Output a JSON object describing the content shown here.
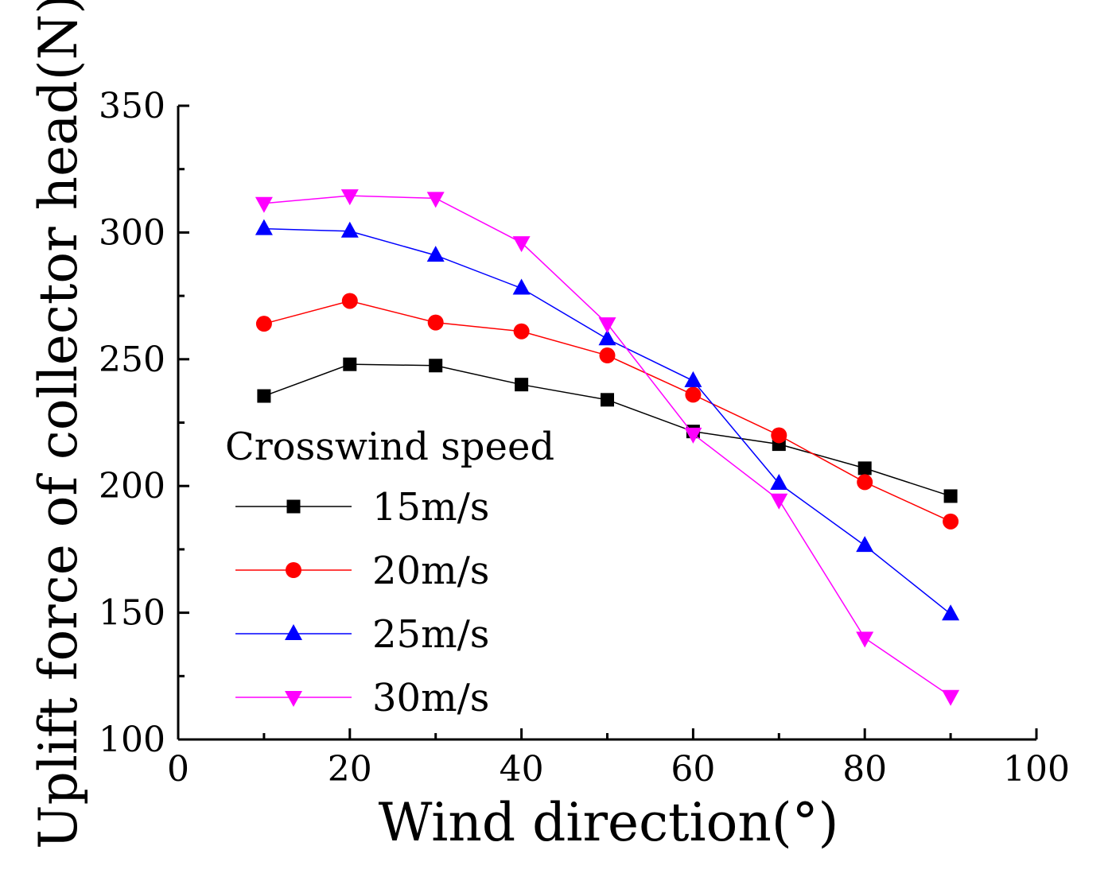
{
  "chart_data": {
    "type": "line",
    "title": "",
    "xlabel": "Wind direction(°)",
    "ylabel": "Uplift force of collector head(N)",
    "xlim": [
      0,
      100
    ],
    "ylim": [
      100,
      350
    ],
    "xticks": [
      0,
      20,
      40,
      60,
      80,
      100
    ],
    "yticks": [
      100,
      150,
      200,
      250,
      300,
      350
    ],
    "grid": false,
    "legend": {
      "title": "Crosswind speed",
      "placement": "center-left"
    },
    "x": [
      10,
      20,
      30,
      40,
      50,
      60,
      70,
      80,
      90
    ],
    "series": [
      {
        "name": "15m/s",
        "color": "#000000",
        "marker": "square",
        "values": [
          235.5,
          248,
          247.5,
          240,
          234,
          221.5,
          216.5,
          207,
          196
        ]
      },
      {
        "name": "20m/s",
        "color": "#ff0000",
        "marker": "circle",
        "values": [
          264,
          273,
          264.5,
          261,
          251.5,
          236,
          220,
          201.5,
          186
        ]
      },
      {
        "name": "25m/s",
        "color": "#0000ff",
        "marker": "triangle-up",
        "values": [
          301.5,
          300.5,
          291,
          278,
          258,
          241.5,
          201,
          176.5,
          149.5
        ]
      },
      {
        "name": "30m/s",
        "color": "#ff00ff",
        "marker": "triangle-down",
        "values": [
          311.5,
          314.5,
          313.5,
          296,
          264,
          220.5,
          194.5,
          140,
          117
        ]
      }
    ]
  }
}
